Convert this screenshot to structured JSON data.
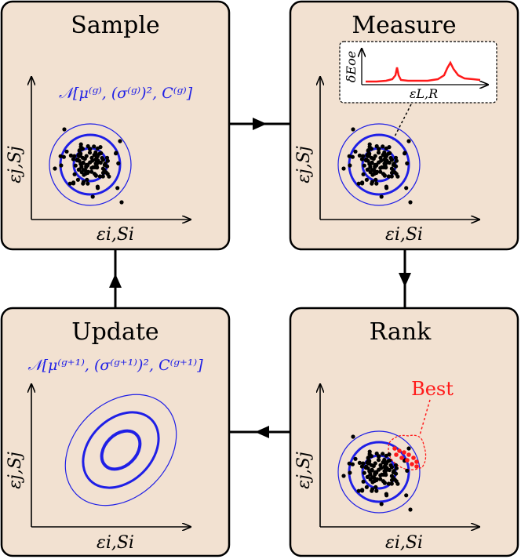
{
  "panels": {
    "sample": {
      "title": "Sample",
      "formula": "𝒩[μ⁽ᵍ⁾, (σ⁽ᵍ⁾)², C⁽ᵍ⁾]",
      "xlabel": "εi,Si",
      "ylabel": "εj,Sj"
    },
    "measure": {
      "title": "Measure",
      "inset_ylabel": "δEoe",
      "inset_xlabel": "εL,R",
      "xlabel": "εi,Si",
      "ylabel": "εj,Sj"
    },
    "rank": {
      "title": "Rank",
      "best_label": "Best",
      "xlabel": "εi,Si",
      "ylabel": "εj,Sj"
    },
    "update": {
      "title": "Update",
      "formula": "𝒩[μ⁽ᵍ⁺¹⁾, (σ⁽ᵍ⁺¹⁾)², C⁽ᵍ⁺¹⁾]",
      "xlabel": "εi,Si",
      "ylabel": "εj,Sj"
    }
  },
  "colors": {
    "panel_fill": "#f2e1d1",
    "panel_stroke": "#000000",
    "contour_blue": "#1f1fe6",
    "best_red": "#ff1a1a",
    "point_black": "#000000"
  },
  "flow": [
    "Sample",
    "Measure",
    "Rank",
    "Update",
    "Sample"
  ]
}
